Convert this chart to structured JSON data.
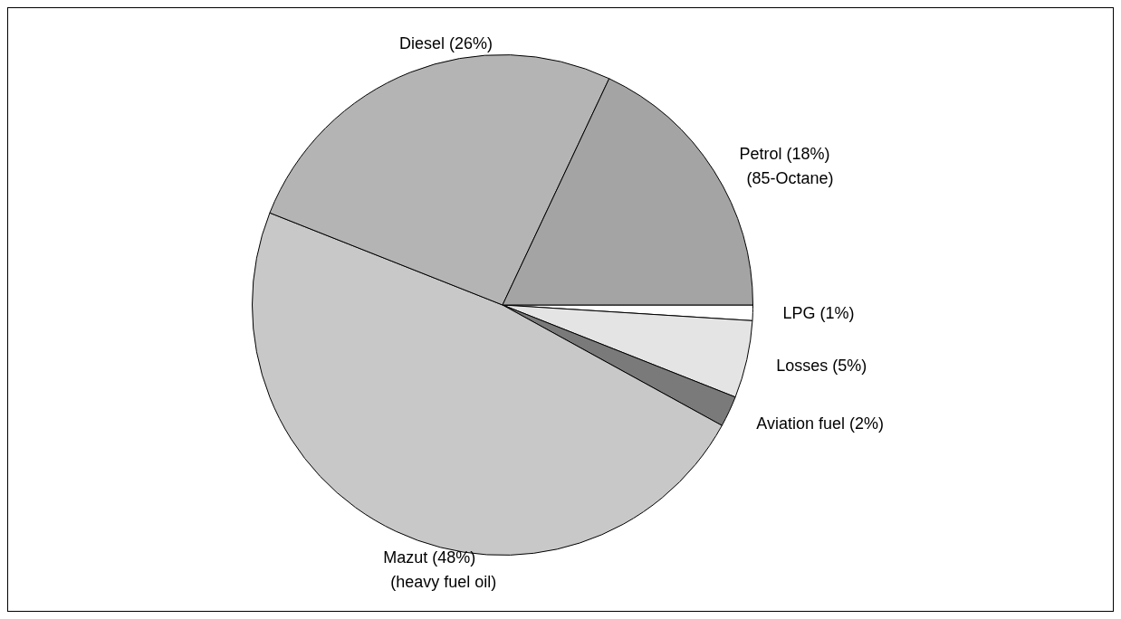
{
  "chart_data": {
    "type": "pie",
    "categories": [
      "LPG (1%)",
      "Losses (5%)",
      "Aviation fuel (2%)",
      "Mazut (48%)\n(heavy fuel oil)",
      "Diesel (26%)",
      "Petrol (18%)\n(85-Octane)"
    ],
    "values": [
      1,
      5,
      2,
      48,
      26,
      18
    ],
    "colors": [
      "#ffffff",
      "#e4e4e4",
      "#7a7a7a",
      "#c8c8c8",
      "#b4b4b4",
      "#a4a4a4"
    ],
    "legend": false
  }
}
